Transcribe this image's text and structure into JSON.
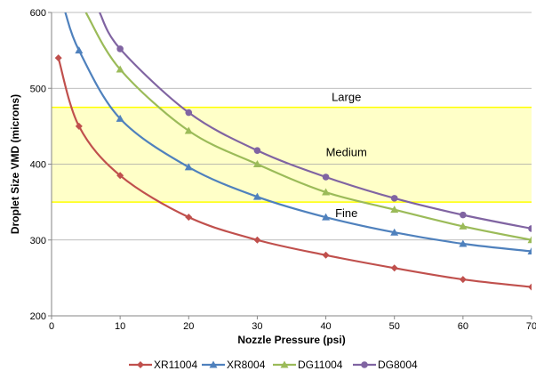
{
  "chart_data": {
    "type": "line",
    "xlabel": "Nozzle Pressure (psi)",
    "ylabel": "Droplet Size VMD (microns)",
    "xlim": [
      0,
      70
    ],
    "ylim": [
      200,
      600
    ],
    "xticks": [
      0,
      10,
      20,
      30,
      40,
      50,
      60,
      70
    ],
    "yticks": [
      200,
      300,
      400,
      500,
      600
    ],
    "grid": "horizontal",
    "legend_position": "bottom",
    "bands": [
      {
        "label": "Large",
        "label_x": 43,
        "label_y": 488
      },
      {
        "label": "Medium",
        "label_x": 43,
        "label_y": 415,
        "from": 350,
        "to": 475,
        "fill": "#ffffc8",
        "line_color": "#ffff00"
      },
      {
        "label": "Fine",
        "label_x": 43,
        "label_y": 335
      }
    ],
    "series": [
      {
        "name": "XR11004",
        "color": "#c0504d",
        "marker": "diamond",
        "points": [
          [
            1,
            540
          ],
          [
            4,
            450
          ],
          [
            10,
            385
          ],
          [
            20,
            330
          ],
          [
            30,
            300
          ],
          [
            40,
            280
          ],
          [
            50,
            263
          ],
          [
            60,
            248
          ],
          [
            70,
            238
          ]
        ],
        "curve_start": [
          1,
          540
        ]
      },
      {
        "name": "XR8004",
        "color": "#4f81bd",
        "marker": "triangle",
        "points": [
          [
            4,
            550
          ],
          [
            10,
            460
          ],
          [
            20,
            396
          ],
          [
            30,
            357
          ],
          [
            40,
            330
          ],
          [
            50,
            310
          ],
          [
            60,
            295
          ],
          [
            70,
            285
          ]
        ],
        "curve_start": [
          2,
          600
        ]
      },
      {
        "name": "DG11004",
        "color": "#9bbb59",
        "marker": "triangle",
        "points": [
          [
            10,
            525
          ],
          [
            20,
            444
          ],
          [
            30,
            400
          ],
          [
            40,
            363
          ],
          [
            50,
            340
          ],
          [
            60,
            318
          ],
          [
            70,
            300
          ]
        ],
        "curve_start": [
          5,
          600
        ]
      },
      {
        "name": "DG8004",
        "color": "#8064a2",
        "marker": "circle",
        "points": [
          [
            10,
            552
          ],
          [
            20,
            468
          ],
          [
            30,
            418
          ],
          [
            40,
            383
          ],
          [
            50,
            355
          ],
          [
            60,
            333
          ],
          [
            70,
            315
          ]
        ],
        "curve_start": [
          7,
          600
        ]
      }
    ]
  }
}
